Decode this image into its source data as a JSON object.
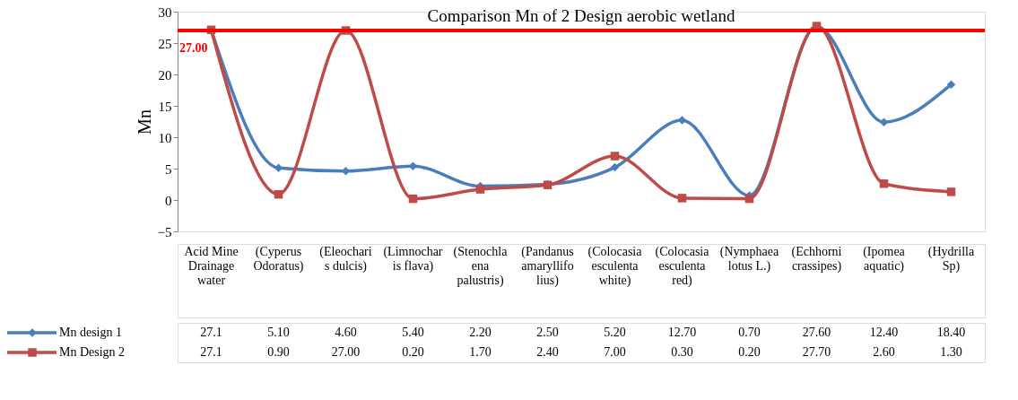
{
  "chart_data": {
    "type": "line",
    "title": "Comparison Mn of 2 Design aerobic wetland",
    "ylabel": "Mn",
    "categories": [
      "Acid Mine Drainage water",
      "(Cyperus Odoratus)",
      "(Eleocharis dulcis)",
      "(Limnocharis flava)",
      "(Stenochlaena palustris)",
      "(Pandanus amaryllifolius)",
      "(Colocasia esculenta white)",
      "(Colocasia esculenta red)",
      "(Nymphaea lotus L.)",
      "(Echhorni crassipes)",
      "(Ipomea aquatic)",
      "(Hydrilla Sp)"
    ],
    "series": [
      {
        "name": "Mn design 1",
        "color": "#4a7ebb",
        "marker": "diamond",
        "values": [
          27.1,
          5.1,
          4.6,
          5.4,
          2.2,
          2.5,
          5.2,
          12.7,
          0.7,
          27.6,
          12.4,
          18.4
        ],
        "value_labels": [
          "27.1",
          "5.10",
          "4.60",
          "5.40",
          "2.20",
          "2.50",
          "5.20",
          "12.70",
          "0.70",
          "27.60",
          "12.40",
          "18.40"
        ]
      },
      {
        "name": "Mn Design 2",
        "color": "#be4b48",
        "marker": "square",
        "values": [
          27.1,
          0.9,
          27.0,
          0.2,
          1.7,
          2.4,
          7.0,
          0.3,
          0.2,
          27.7,
          2.6,
          1.3
        ],
        "value_labels": [
          "27.1",
          "0.90",
          "27.00",
          "0.20",
          "1.70",
          "2.40",
          "7.00",
          "0.30",
          "0.20",
          "27.70",
          "2.60",
          "1.30"
        ]
      }
    ],
    "ref_lines": [
      {
        "axis": "y",
        "value": 27,
        "label": "27.00",
        "color": "#ff0000"
      }
    ],
    "ylim": [
      -5,
      30
    ],
    "yticks": [
      -5,
      0,
      5,
      10,
      15,
      20,
      25,
      30
    ],
    "grid": false,
    "legend": "bottom left"
  }
}
